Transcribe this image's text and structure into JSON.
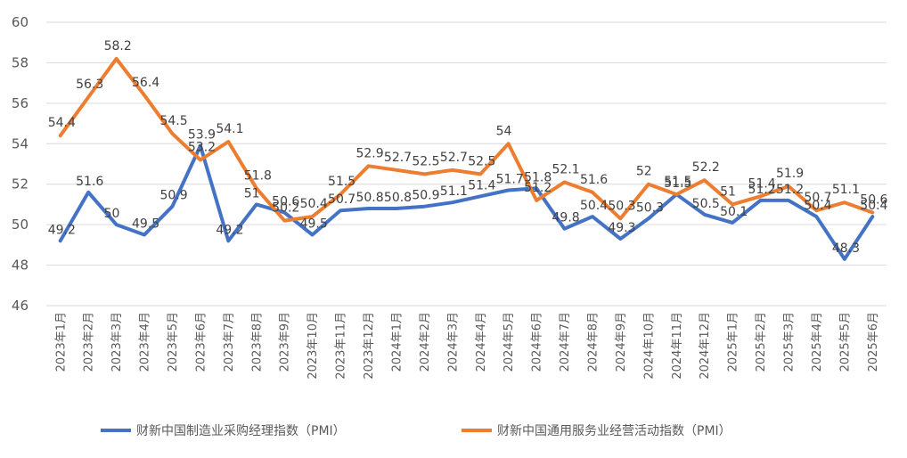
{
  "chart_data": {
    "type": "line",
    "title": "",
    "xlabel": "",
    "ylabel": "",
    "ylim": [
      46,
      60
    ],
    "yticks": [
      46,
      48,
      50,
      52,
      54,
      56,
      58,
      60
    ],
    "grid": true,
    "legend_position": "bottom",
    "categories": [
      "2023年1月",
      "2023年2月",
      "2023年3月",
      "2023年4月",
      "2023年5月",
      "2023年6月",
      "2023年7月",
      "2023年8月",
      "2023年9月",
      "2023年10月",
      "2023年11月",
      "2023年12月",
      "2024年1月",
      "2024年2月",
      "2024年3月",
      "2024年4月",
      "2024年5月",
      "2024年6月",
      "2024年7月",
      "2024年8月",
      "2024年9月",
      "2024年10月",
      "2024年11月",
      "2024年12月",
      "2025年1月",
      "2025年2月",
      "2025年3月",
      "2025年4月",
      "2025年5月",
      "2025年6月"
    ],
    "series": [
      {
        "name": "财新中国制造业采购经理指数（PMI）",
        "color": "#4472c4",
        "values": [
          49.2,
          51.6,
          50,
          49.5,
          50.9,
          53.9,
          49.2,
          51,
          50.6,
          49.5,
          50.7,
          50.8,
          50.8,
          50.9,
          51.1,
          51.4,
          51.7,
          51.8,
          49.8,
          50.4,
          49.3,
          50.3,
          51.5,
          50.5,
          50.1,
          51.2,
          51.2,
          50.4,
          48.3,
          50.4
        ]
      },
      {
        "name": "财新中国通用服务业经营活动指数（PMI）",
        "color": "#ed7d31",
        "values": [
          54.4,
          56.3,
          58.2,
          56.4,
          54.5,
          53.2,
          54.1,
          51.8,
          50.2,
          50.4,
          51.5,
          52.9,
          52.7,
          52.5,
          52.7,
          52.5,
          54,
          51.2,
          52.1,
          51.6,
          50.3,
          52,
          51.5,
          52.2,
          51,
          51.4,
          51.9,
          50.7,
          51.1,
          50.6
        ]
      }
    ]
  }
}
